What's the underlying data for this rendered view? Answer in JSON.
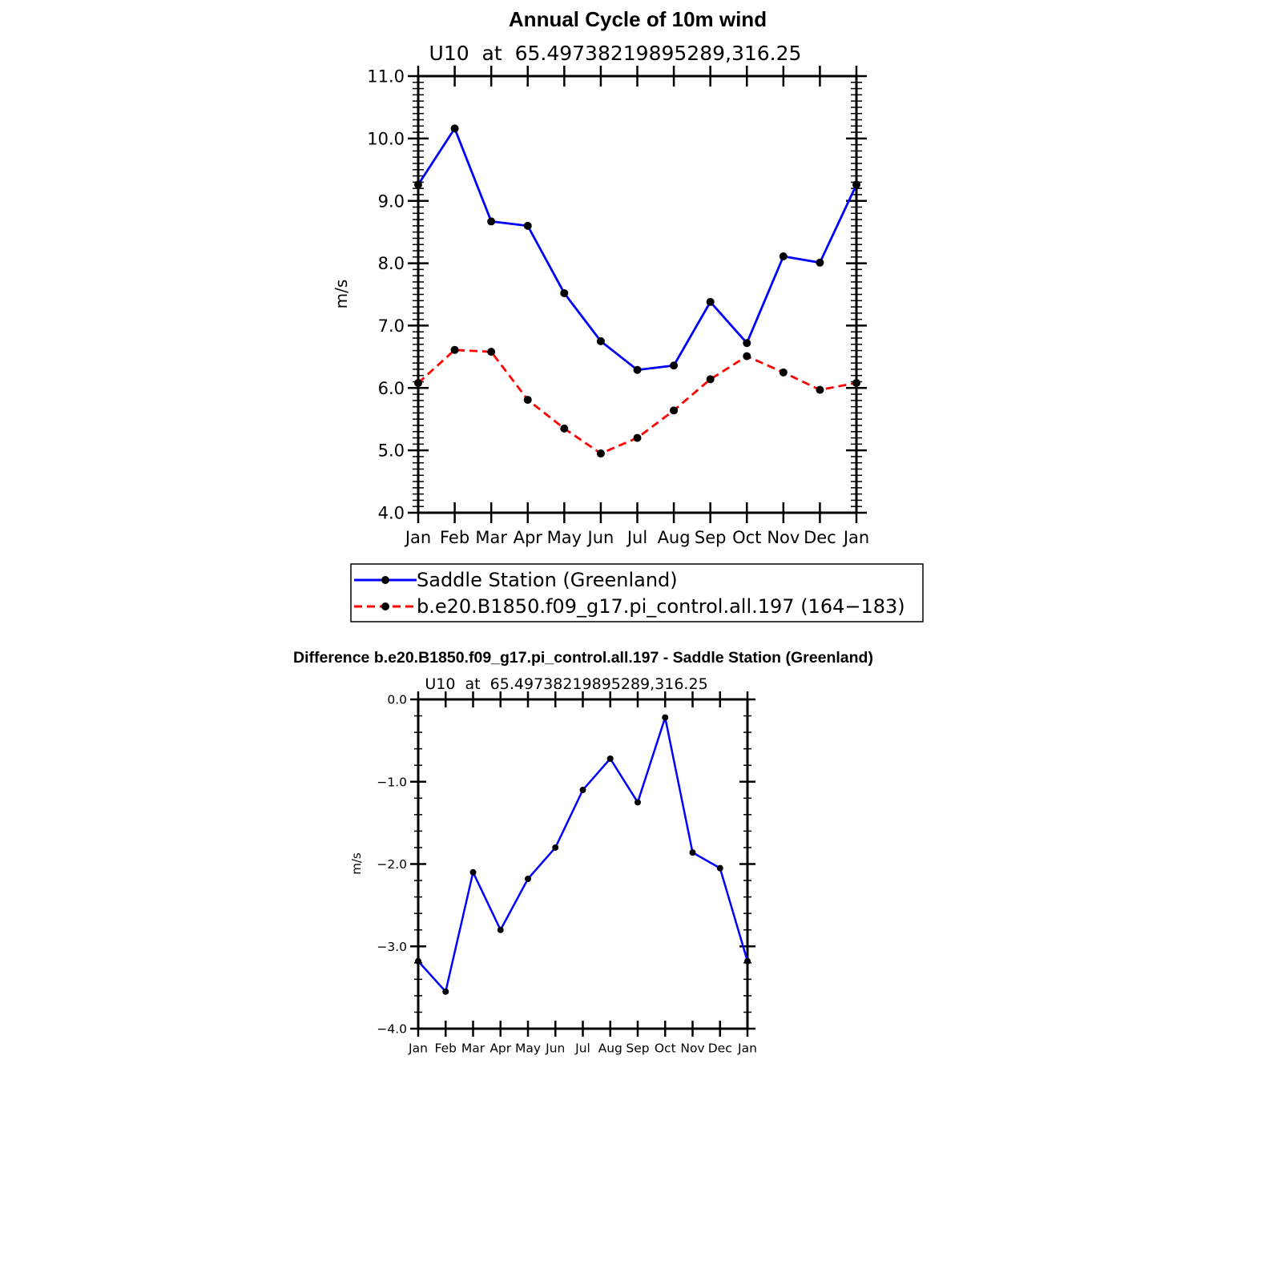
{
  "chart_data": [
    {
      "type": "line",
      "title": "Annual Cycle of 10m wind",
      "subtitle": "U10  at  65.49738219895289,316.25",
      "xlabel": "",
      "ylabel": "m/s",
      "categories": [
        "Jan",
        "Feb",
        "Mar",
        "Apr",
        "May",
        "Jun",
        "Jul",
        "Aug",
        "Sep",
        "Oct",
        "Nov",
        "Dec",
        "Jan"
      ],
      "ylim": [
        4.0,
        11.0
      ],
      "yticks": [
        "4.0",
        "5.0",
        "6.0",
        "7.0",
        "8.0",
        "9.0",
        "10.0",
        "11.0"
      ],
      "grid": false,
      "legend_placement": "below",
      "series": [
        {
          "name": "Saddle Station (Greenland)",
          "color": "#0000ff",
          "dash": "solid",
          "values": [
            9.26,
            10.16,
            8.67,
            8.6,
            7.52,
            6.75,
            6.29,
            6.36,
            7.38,
            6.72,
            8.11,
            8.01,
            9.26
          ]
        },
        {
          "name": "b.e20.B1850.f09_g17.pi_control.all.197 (164−183)",
          "color": "#ff0000",
          "dash": "dashed",
          "values": [
            6.08,
            6.61,
            6.58,
            5.81,
            5.35,
            4.95,
            5.2,
            5.64,
            6.14,
            6.51,
            6.25,
            5.97,
            6.08
          ]
        }
      ]
    },
    {
      "type": "line",
      "title": "Difference b.e20.B1850.f09_g17.pi_control.all.197 - Saddle Station (Greenland)",
      "subtitle": "U10  at  65.49738219895289,316.25",
      "xlabel": "",
      "ylabel": "m/s",
      "categories": [
        "Jan",
        "Feb",
        "Mar",
        "Apr",
        "May",
        "Jun",
        "Jul",
        "Aug",
        "Sep",
        "Oct",
        "Nov",
        "Dec",
        "Jan"
      ],
      "ylim": [
        -4.0,
        0.0
      ],
      "yticks": [
        "−4.0",
        "−3.0",
        "−2.0",
        "−1.0",
        "0.0"
      ],
      "grid": false,
      "series": [
        {
          "color": "#0000ff",
          "dash": "solid",
          "values": [
            -3.18,
            -3.55,
            -2.1,
            -2.8,
            -2.18,
            -1.8,
            -1.1,
            -0.72,
            -1.25,
            -0.22,
            -1.86,
            -2.05,
            -3.18
          ]
        }
      ]
    }
  ]
}
